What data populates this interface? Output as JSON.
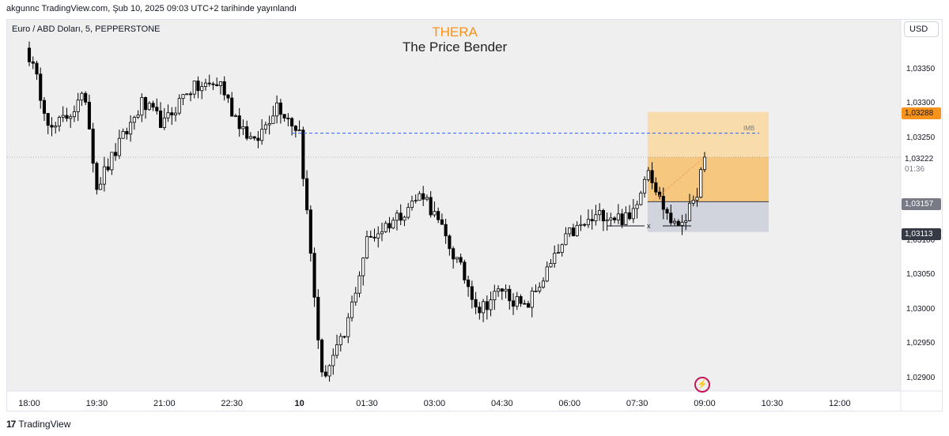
{
  "header": {
    "publish_line": "akgunnc TradingView.com, Şub 10, 2025 09:03 UTC+2 tarihinde yayınlandı"
  },
  "symbol_line": "Euro / ABD Doları, 5, PEPPERSTONE",
  "watermark": {
    "line1": "THERA",
    "line2": "The Price Bender"
  },
  "currency_button": "USD",
  "annotations": {
    "imb_label": "IMB",
    "x_marker": "x"
  },
  "price_labels": {
    "zone_top": "1,03288",
    "last_price": "1,03222",
    "countdown": "01:36",
    "zone_mid": "1,03157",
    "zone_low": "1,03113"
  },
  "footer": {
    "brand": "TradingView",
    "logo_glyph": "17"
  },
  "colors": {
    "up_candle": "#ffffff",
    "down_candle": "#000000",
    "zone_upper": "#f9dcac",
    "zone_middle": "#f6c77f",
    "zone_lower": "#d1d4dc",
    "accent_orange": "#f7931a",
    "dashed_line": "#2962ff"
  },
  "chart_data": {
    "type": "candlestick",
    "title": "",
    "ylim": [
      1.0287,
      1.034
    ],
    "y_ticks": [
      "1,02900",
      "1,02950",
      "1,03000",
      "1,03050",
      "1,03100",
      "1,03150",
      "1,03200",
      "1,03250",
      "1,03300",
      "1,03350"
    ],
    "x_ticks": [
      {
        "label": "18:00",
        "bold": false
      },
      {
        "label": "19:30",
        "bold": false
      },
      {
        "label": "21:00",
        "bold": false
      },
      {
        "label": "22:30",
        "bold": false
      },
      {
        "label": "10",
        "bold": true
      },
      {
        "label": "01:30",
        "bold": false
      },
      {
        "label": "03:00",
        "bold": false
      },
      {
        "label": "04:30",
        "bold": false
      },
      {
        "label": "06:00",
        "bold": false
      },
      {
        "label": "07:30",
        "bold": false
      },
      {
        "label": "09:00",
        "bold": false
      },
      {
        "label": "10:30",
        "bold": false
      },
      {
        "label": "12:00",
        "bold": false
      }
    ],
    "key_prices": {
      "last": 1.03222,
      "zone_top": 1.03288,
      "zone_mid": 1.03157,
      "zone_low": 1.03113,
      "imb_level": 1.03257
    },
    "anchors": [
      [
        "18:00",
        1.0337
      ],
      [
        "18:30",
        1.0326
      ],
      [
        "19:15",
        1.0331
      ],
      [
        "19:30",
        1.0318
      ],
      [
        "20:30",
        1.033
      ],
      [
        "21:00",
        1.0327
      ],
      [
        "21:30",
        1.0332
      ],
      [
        "22:15",
        1.0333
      ],
      [
        "22:30",
        1.0329
      ],
      [
        "23:00",
        1.0324
      ],
      [
        "23:30",
        1.033
      ],
      [
        "00:00",
        1.0326
      ],
      [
        "00:30",
        1.029
      ],
      [
        "01:00",
        1.0296
      ],
      [
        "01:30",
        1.031
      ],
      [
        "02:15",
        1.0314
      ],
      [
        "02:45",
        1.0317
      ],
      [
        "03:30",
        1.0307
      ],
      [
        "04:00",
        1.03
      ],
      [
        "04:30",
        1.0303
      ],
      [
        "05:00",
        1.03
      ],
      [
        "06:00",
        1.0311
      ],
      [
        "06:45",
        1.0314
      ],
      [
        "07:20",
        1.0313
      ],
      [
        "07:45",
        1.0321
      ],
      [
        "08:00",
        1.0316
      ],
      [
        "08:20",
        1.0312
      ],
      [
        "08:45",
        1.0315
      ],
      [
        "09:00",
        1.03222
      ]
    ]
  }
}
